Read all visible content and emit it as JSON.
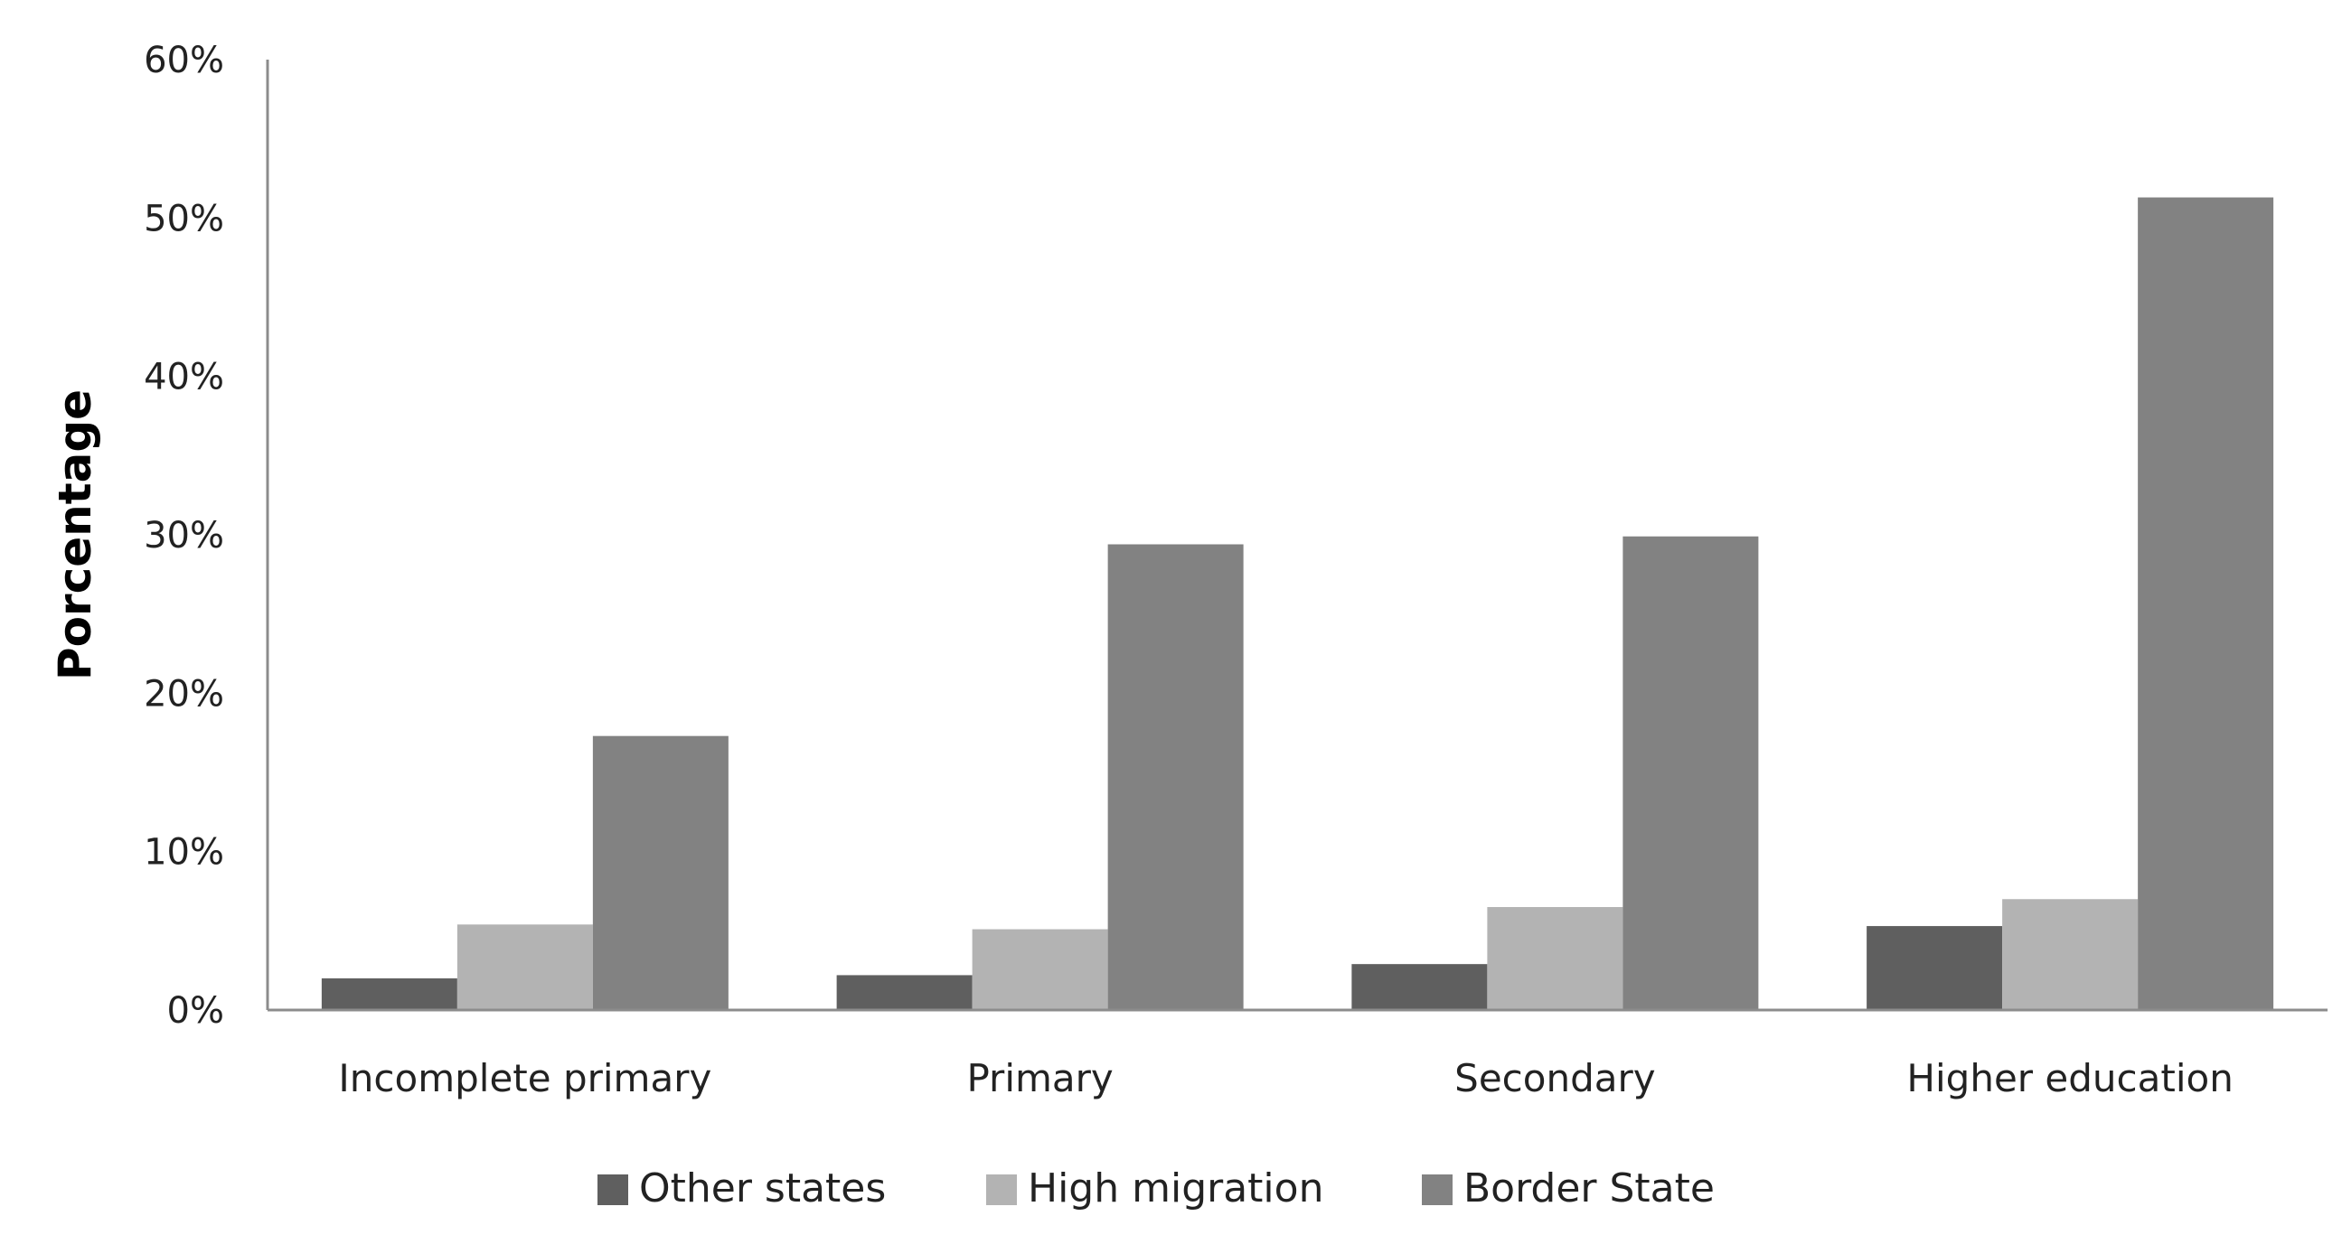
{
  "chart_data": {
    "type": "bar",
    "title": "",
    "xlabel": "",
    "ylabel": "Porcentage",
    "ylim": [
      0,
      60
    ],
    "yticks": [
      "0%",
      "10%",
      "20%",
      "30%",
      "40%",
      "50%",
      "60%"
    ],
    "grid": false,
    "legend_position": "bottom",
    "categories": [
      "Incomplete primary",
      "Primary",
      "Secondary",
      "Higher education"
    ],
    "series": [
      {
        "name": "Other states",
        "color": "#5f5f5f",
        "values": [
          2.0,
          2.2,
          2.9,
          5.3
        ]
      },
      {
        "name": "High migration",
        "color": "#b3b3b3",
        "values": [
          5.4,
          5.1,
          6.5,
          7.0
        ]
      },
      {
        "name": "Border State",
        "color": "#828282",
        "values": [
          17.3,
          29.4,
          29.9,
          51.3
        ]
      }
    ]
  }
}
